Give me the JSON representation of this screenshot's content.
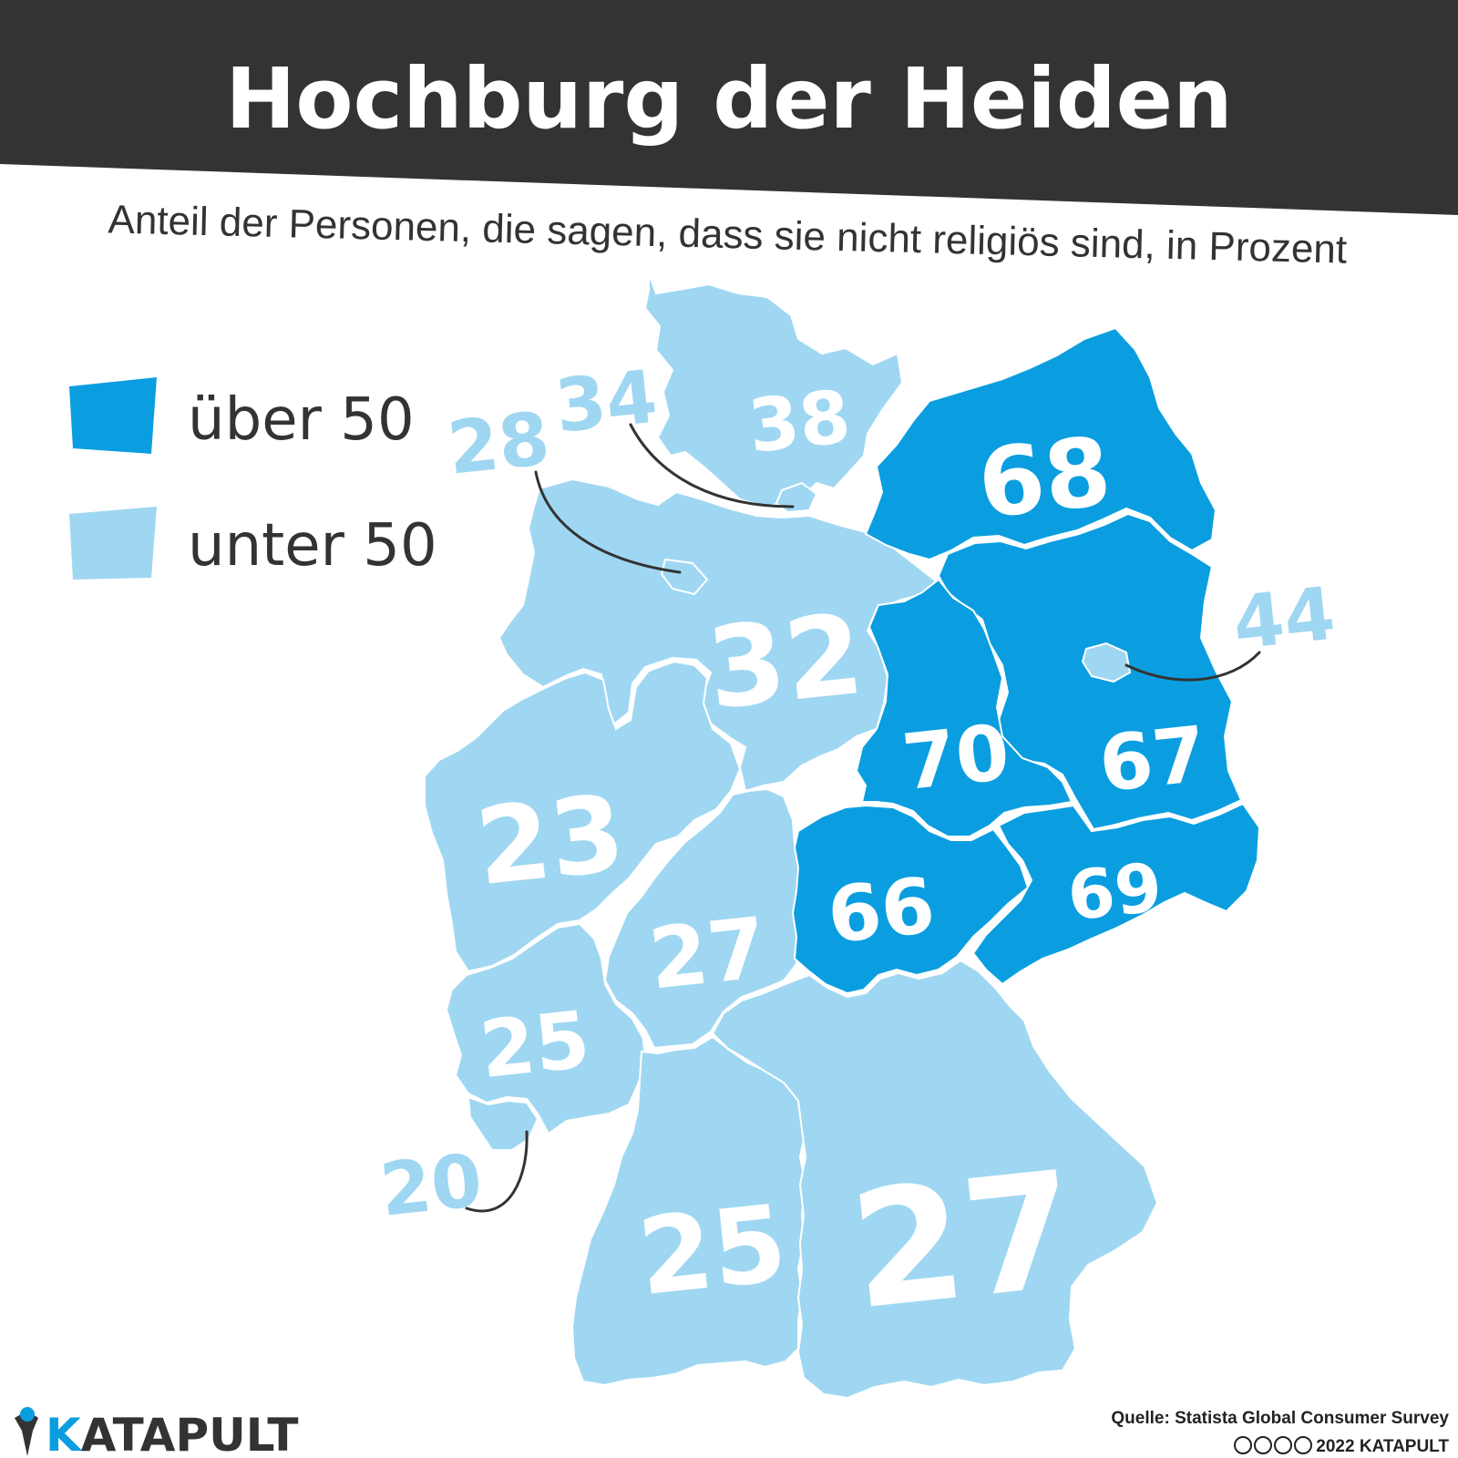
{
  "header": {
    "title": "Hochburg der Heiden",
    "subtitle": "Anteil der Personen, die sagen, dass sie nicht religiös sind, in Prozent"
  },
  "legend": {
    "items": [
      {
        "label": "über 50",
        "color": "#0a9ee0"
      },
      {
        "label": "unter 50",
        "color": "#9fd7f2"
      }
    ]
  },
  "colors": {
    "header_band": "#333333",
    "above_50": "#0a9ee0",
    "below_50": "#9fd7f2"
  },
  "regions": [
    {
      "id": "schleswig-holstein",
      "value": "38"
    },
    {
      "id": "hamburg",
      "value": "34"
    },
    {
      "id": "bremen",
      "value": "28"
    },
    {
      "id": "niedersachsen",
      "value": "32"
    },
    {
      "id": "mecklenburg-vorpommern",
      "value": "68"
    },
    {
      "id": "berlin",
      "value": "44"
    },
    {
      "id": "brandenburg",
      "value": "67"
    },
    {
      "id": "sachsen-anhalt",
      "value": "70"
    },
    {
      "id": "nordrhein-westfalen",
      "value": "23"
    },
    {
      "id": "hessen",
      "value": "27"
    },
    {
      "id": "thueringen",
      "value": "66"
    },
    {
      "id": "sachsen",
      "value": "69"
    },
    {
      "id": "rheinland-pfalz",
      "value": "25"
    },
    {
      "id": "saarland",
      "value": "20"
    },
    {
      "id": "baden-wuerttemberg",
      "value": "25"
    },
    {
      "id": "bayern",
      "value": "27"
    }
  ],
  "logo": {
    "k": "K",
    "rest": "ATAPULT"
  },
  "footer": {
    "source": "Quelle: Statista Global Consumer Survey",
    "license_icons": "cc-by-nc-nd-icons",
    "copyright": "2022 KATAPULT"
  }
}
